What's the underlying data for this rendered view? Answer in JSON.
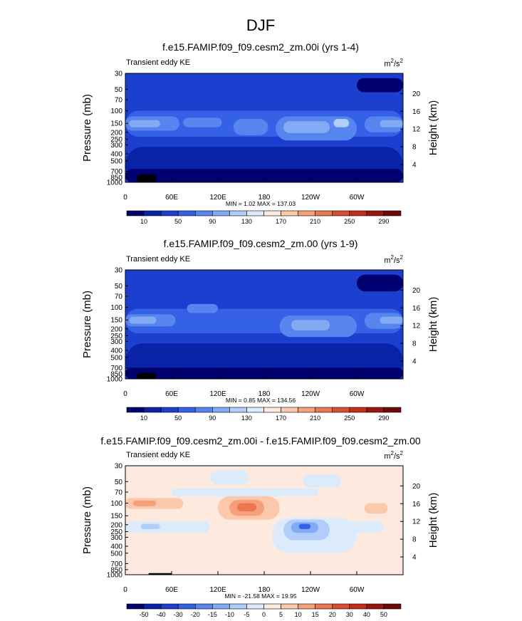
{
  "page_title": "DJF",
  "chart_data": [
    {
      "type": "heatmap",
      "title": "f.e15.FAMIP.f09_f09.cesm2_zm.00i (yrs 1-4)",
      "subtitle": "Transient eddy KE",
      "units_base": "m",
      "units_sup1": "2",
      "units_mid": "/s",
      "units_sup2": "2",
      "xlabel": "",
      "ylabel": "Pressure (mb)",
      "ylabel_right": "Height (km)",
      "x_ticks": [
        {
          "label": "0",
          "lon": 0
        },
        {
          "label": "60E",
          "lon": 60
        },
        {
          "label": "120E",
          "lon": 120
        },
        {
          "label": "180",
          "lon": 180
        },
        {
          "label": "120W",
          "lon": 240
        },
        {
          "label": "60W",
          "lon": 300
        }
      ],
      "x_range": [
        0,
        360
      ],
      "p_ticks": [
        {
          "label": "30",
          "p": 30
        },
        {
          "label": "50",
          "p": 50
        },
        {
          "label": "70",
          "p": 70
        },
        {
          "label": "100",
          "p": 100
        },
        {
          "label": "150",
          "p": 150
        },
        {
          "label": "200",
          "p": 200
        },
        {
          "label": "250",
          "p": 250
        },
        {
          "label": "300",
          "p": 300
        },
        {
          "label": "400",
          "p": 400
        },
        {
          "label": "500",
          "p": 500
        },
        {
          "label": "700",
          "p": 700
        },
        {
          "label": "850",
          "p": 850
        },
        {
          "label": "1000",
          "p": 1000
        }
      ],
      "height_ticks": [
        {
          "label": "20",
          "km": 20
        },
        {
          "label": "16",
          "km": 16
        },
        {
          "label": "12",
          "km": 12
        },
        {
          "label": "8",
          "km": 8
        },
        {
          "label": "4",
          "km": 4
        }
      ],
      "p_range": [
        30,
        1000
      ],
      "stats": "MIN =   1.02  MAX = 137.03",
      "min": 1.02,
      "max": 137.03,
      "colorbar": {
        "colors": [
          "#00006e",
          "#0a22a6",
          "#1c3fd0",
          "#3461e6",
          "#5785ef",
          "#82aaf5",
          "#b1cdfa",
          "#dcebfc",
          "#fde9de",
          "#fbc8ab",
          "#f6a07b",
          "#ec7650",
          "#da4f30",
          "#c22e1b",
          "#9a1710",
          "#6e0a08"
        ],
        "labels": [
          {
            "label": "10",
            "index": 1
          },
          {
            "label": "50",
            "index": 3
          },
          {
            "label": "90",
            "index": 5
          },
          {
            "label": "130",
            "index": 7
          },
          {
            "label": "170",
            "index": 9
          },
          {
            "label": "210",
            "index": 11
          },
          {
            "label": "250",
            "index": 13
          },
          {
            "label": "290",
            "index": 15
          }
        ]
      },
      "field": {
        "background_color": "#1c3fd0",
        "features": [
          {
            "lon": 0,
            "p": 30,
            "lon2": 360,
            "p2": 85,
            "color": "#1c3fd0"
          },
          {
            "lon": 0,
            "p": 100,
            "lon2": 360,
            "p2": 230,
            "color": "#3461e6"
          },
          {
            "lon": 0,
            "p": 120,
            "lon2": 70,
            "p2": 190,
            "color": "#5785ef"
          },
          {
            "lon": 5,
            "p": 135,
            "lon2": 45,
            "p2": 170,
            "color": "#82aaf5"
          },
          {
            "lon": 75,
            "p": 125,
            "lon2": 125,
            "p2": 170,
            "color": "#5785ef"
          },
          {
            "lon": 140,
            "p": 130,
            "lon2": 185,
            "p2": 220,
            "color": "#5785ef"
          },
          {
            "lon": 195,
            "p": 120,
            "lon2": 300,
            "p2": 260,
            "color": "#5785ef"
          },
          {
            "lon": 205,
            "p": 140,
            "lon2": 265,
            "p2": 205,
            "color": "#82aaf5"
          },
          {
            "lon": 270,
            "p": 130,
            "lon2": 290,
            "p2": 170,
            "color": "#b1cdfa"
          },
          {
            "lon": 310,
            "p": 120,
            "lon2": 360,
            "p2": 200,
            "color": "#5785ef"
          },
          {
            "lon": 330,
            "p": 135,
            "lon2": 360,
            "p2": 170,
            "color": "#82aaf5"
          },
          {
            "lon": 0,
            "p": 320,
            "lon2": 360,
            "p2": 1000,
            "color": "#0a22a6"
          },
          {
            "lon": 60,
            "p": 400,
            "lon2": 350,
            "p2": 1000,
            "color": "#0a22a6"
          },
          {
            "lon": 0,
            "p": 650,
            "lon2": 360,
            "p2": 1000,
            "color": "#00006e"
          },
          {
            "lon": 300,
            "p": 35,
            "lon2": 360,
            "p2": 55,
            "color": "#00006e"
          },
          {
            "lon": 15,
            "p": 780,
            "lon2": 40,
            "p2": 1000,
            "color": "#000000"
          }
        ]
      }
    },
    {
      "type": "heatmap",
      "title": "f.e15.FAMIP.f09_f09.cesm2_zm.00 (yrs 1-9)",
      "subtitle": "Transient eddy KE",
      "units_base": "m",
      "units_sup1": "2",
      "units_mid": "/s",
      "units_sup2": "2",
      "xlabel": "",
      "ylabel": "Pressure (mb)",
      "ylabel_right": "Height (km)",
      "x_ticks": [
        {
          "label": "0",
          "lon": 0
        },
        {
          "label": "60E",
          "lon": 60
        },
        {
          "label": "120E",
          "lon": 120
        },
        {
          "label": "180",
          "lon": 180
        },
        {
          "label": "120W",
          "lon": 240
        },
        {
          "label": "60W",
          "lon": 300
        }
      ],
      "x_range": [
        0,
        360
      ],
      "p_ticks": [
        {
          "label": "30",
          "p": 30
        },
        {
          "label": "50",
          "p": 50
        },
        {
          "label": "70",
          "p": 70
        },
        {
          "label": "100",
          "p": 100
        },
        {
          "label": "150",
          "p": 150
        },
        {
          "label": "200",
          "p": 200
        },
        {
          "label": "250",
          "p": 250
        },
        {
          "label": "300",
          "p": 300
        },
        {
          "label": "400",
          "p": 400
        },
        {
          "label": "500",
          "p": 500
        },
        {
          "label": "700",
          "p": 700
        },
        {
          "label": "850",
          "p": 850
        },
        {
          "label": "1000",
          "p": 1000
        }
      ],
      "height_ticks": [
        {
          "label": "20",
          "km": 20
        },
        {
          "label": "16",
          "km": 16
        },
        {
          "label": "12",
          "km": 12
        },
        {
          "label": "8",
          "km": 8
        },
        {
          "label": "4",
          "km": 4
        }
      ],
      "p_range": [
        30,
        1000
      ],
      "stats": "MIN =   0.85  MAX = 134.56",
      "min": 0.85,
      "max": 134.56,
      "colorbar": {
        "colors": [
          "#00006e",
          "#0a22a6",
          "#1c3fd0",
          "#3461e6",
          "#5785ef",
          "#82aaf5",
          "#b1cdfa",
          "#dcebfc",
          "#fde9de",
          "#fbc8ab",
          "#f6a07b",
          "#ec7650",
          "#da4f30",
          "#c22e1b",
          "#9a1710",
          "#6e0a08"
        ],
        "labels": [
          {
            "label": "10",
            "index": 1
          },
          {
            "label": "50",
            "index": 3
          },
          {
            "label": "90",
            "index": 5
          },
          {
            "label": "130",
            "index": 7
          },
          {
            "label": "170",
            "index": 9
          },
          {
            "label": "210",
            "index": 11
          },
          {
            "label": "250",
            "index": 13
          },
          {
            "label": "290",
            "index": 15
          }
        ]
      },
      "field": {
        "background_color": "#1c3fd0",
        "features": [
          {
            "lon": 0,
            "p": 30,
            "lon2": 360,
            "p2": 85,
            "color": "#1c3fd0"
          },
          {
            "lon": 0,
            "p": 105,
            "lon2": 360,
            "p2": 230,
            "color": "#3461e6"
          },
          {
            "lon": 0,
            "p": 125,
            "lon2": 65,
            "p2": 185,
            "color": "#5785ef"
          },
          {
            "lon": 5,
            "p": 135,
            "lon2": 40,
            "p2": 170,
            "color": "#82aaf5"
          },
          {
            "lon": 80,
            "p": 90,
            "lon2": 120,
            "p2": 120,
            "color": "#5785ef"
          },
          {
            "lon": 200,
            "p": 130,
            "lon2": 300,
            "p2": 260,
            "color": "#5785ef"
          },
          {
            "lon": 215,
            "p": 150,
            "lon2": 265,
            "p2": 210,
            "color": "#82aaf5"
          },
          {
            "lon": 310,
            "p": 120,
            "lon2": 360,
            "p2": 200,
            "color": "#5785ef"
          },
          {
            "lon": 330,
            "p": 135,
            "lon2": 360,
            "p2": 170,
            "color": "#82aaf5"
          },
          {
            "lon": 0,
            "p": 320,
            "lon2": 360,
            "p2": 1000,
            "color": "#0a22a6"
          },
          {
            "lon": 60,
            "p": 420,
            "lon2": 340,
            "p2": 1000,
            "color": "#0a22a6"
          },
          {
            "lon": 0,
            "p": 700,
            "lon2": 360,
            "p2": 1000,
            "color": "#00006e"
          },
          {
            "lon": 300,
            "p": 35,
            "lon2": 360,
            "p2": 60,
            "color": "#00006e"
          },
          {
            "lon": 15,
            "p": 820,
            "lon2": 40,
            "p2": 1000,
            "color": "#000000"
          }
        ]
      }
    },
    {
      "type": "heatmap",
      "title": "f.e15.FAMIP.f09_f09.cesm2_zm.00i - f.e15.FAMIP.f09_f09.cesm2_zm.00",
      "subtitle": "Transient eddy KE",
      "units_base": "m",
      "units_sup1": "2",
      "units_mid": "/s",
      "units_sup2": "2",
      "xlabel": "",
      "ylabel": "Pressure (mb)",
      "ylabel_right": "Height (km)",
      "x_ticks": [
        {
          "label": "0",
          "lon": 0
        },
        {
          "label": "60E",
          "lon": 60
        },
        {
          "label": "120E",
          "lon": 120
        },
        {
          "label": "180",
          "lon": 180
        },
        {
          "label": "120W",
          "lon": 240
        },
        {
          "label": "60W",
          "lon": 300
        }
      ],
      "x_range": [
        0,
        360
      ],
      "p_ticks": [
        {
          "label": "30",
          "p": 30
        },
        {
          "label": "50",
          "p": 50
        },
        {
          "label": "70",
          "p": 70
        },
        {
          "label": "100",
          "p": 100
        },
        {
          "label": "150",
          "p": 150
        },
        {
          "label": "200",
          "p": 200
        },
        {
          "label": "250",
          "p": 250
        },
        {
          "label": "300",
          "p": 300
        },
        {
          "label": "400",
          "p": 400
        },
        {
          "label": "500",
          "p": 500
        },
        {
          "label": "700",
          "p": 700
        },
        {
          "label": "850",
          "p": 850
        },
        {
          "label": "1000",
          "p": 1000
        }
      ],
      "height_ticks": [
        {
          "label": "20",
          "km": 20
        },
        {
          "label": "16",
          "km": 16
        },
        {
          "label": "12",
          "km": 12
        },
        {
          "label": "8",
          "km": 8
        },
        {
          "label": "4",
          "km": 4
        }
      ],
      "p_range": [
        30,
        1000
      ],
      "stats": "MIN = -21.58  MAX =  19.95",
      "min": -21.58,
      "max": 19.95,
      "colorbar": {
        "colors": [
          "#00006e",
          "#0a22a6",
          "#1c3fd0",
          "#3461e6",
          "#5785ef",
          "#82aaf5",
          "#b1cdfa",
          "#dcebfc",
          "#fde9de",
          "#fbc8ab",
          "#f6a07b",
          "#ec7650",
          "#da4f30",
          "#c22e1b",
          "#9a1710",
          "#6e0a08"
        ],
        "labels": [
          {
            "label": "-50",
            "index": 1
          },
          {
            "label": "-40",
            "index": 2
          },
          {
            "label": "-30",
            "index": 3
          },
          {
            "label": "-20",
            "index": 4
          },
          {
            "label": "-15",
            "index": 5
          },
          {
            "label": "-10",
            "index": 6
          },
          {
            "label": "-5",
            "index": 7
          },
          {
            "label": "0",
            "index": 8
          },
          {
            "label": "5",
            "index": 9
          },
          {
            "label": "10",
            "index": 10
          },
          {
            "label": "15",
            "index": 11
          },
          {
            "label": "20",
            "index": 12
          },
          {
            "label": "30",
            "index": 13
          },
          {
            "label": "40",
            "index": 14
          },
          {
            "label": "50",
            "index": 15
          }
        ]
      },
      "field": {
        "background_color": "#fde9de",
        "features": [
          {
            "lon": 110,
            "p": 35,
            "lon2": 160,
            "p2": 55,
            "color": "#dcebfc"
          },
          {
            "lon": 60,
            "p": 62,
            "lon2": 250,
            "p2": 80,
            "color": "#dcebfc"
          },
          {
            "lon": 230,
            "p": 40,
            "lon2": 280,
            "p2": 60,
            "color": "#dcebfc"
          },
          {
            "lon": 0,
            "p": 85,
            "lon2": 75,
            "p2": 120,
            "color": "#fbc8ab"
          },
          {
            "lon": 10,
            "p": 92,
            "lon2": 40,
            "p2": 110,
            "color": "#f6a07b"
          },
          {
            "lon": 120,
            "p": 80,
            "lon2": 200,
            "p2": 170,
            "color": "#fbc8ab"
          },
          {
            "lon": 135,
            "p": 90,
            "lon2": 180,
            "p2": 150,
            "color": "#f6a07b"
          },
          {
            "lon": 145,
            "p": 100,
            "lon2": 170,
            "p2": 130,
            "color": "#ec7650"
          },
          {
            "lon": 310,
            "p": 100,
            "lon2": 340,
            "p2": 140,
            "color": "#fbc8ab"
          },
          {
            "lon": 0,
            "p": 180,
            "lon2": 110,
            "p2": 260,
            "color": "#dcebfc"
          },
          {
            "lon": 20,
            "p": 195,
            "lon2": 45,
            "p2": 230,
            "color": "#b1cdfa"
          },
          {
            "lon": 190,
            "p": 160,
            "lon2": 300,
            "p2": 500,
            "color": "#dcebfc"
          },
          {
            "lon": 205,
            "p": 170,
            "lon2": 265,
            "p2": 330,
            "color": "#b1cdfa"
          },
          {
            "lon": 215,
            "p": 185,
            "lon2": 250,
            "p2": 260,
            "color": "#82aaf5"
          },
          {
            "lon": 225,
            "p": 195,
            "lon2": 240,
            "p2": 230,
            "color": "#3461e6"
          },
          {
            "lon": 285,
            "p": 180,
            "lon2": 335,
            "p2": 260,
            "color": "#dcebfc"
          },
          {
            "lon": 30,
            "p": 950,
            "lon2": 60,
            "p2": 1000,
            "color": "#000000"
          }
        ]
      }
    }
  ]
}
